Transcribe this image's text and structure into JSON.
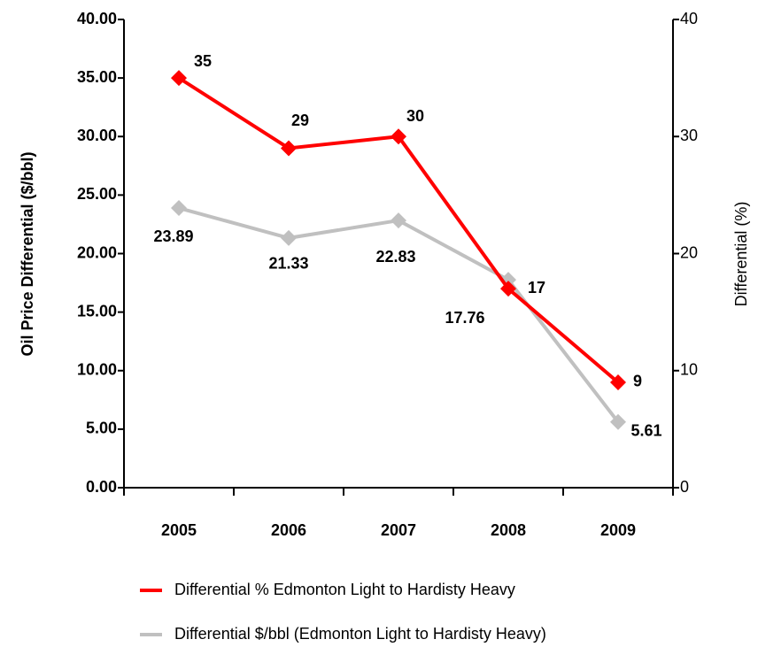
{
  "chart_data": {
    "type": "line",
    "categories": [
      "2005",
      "2006",
      "2007",
      "2008",
      "2009"
    ],
    "y_label": "Oil Price Differential ($/bbl)",
    "y2_label": "Differential (%)",
    "ylim": [
      0,
      40
    ],
    "yticks": [
      {
        "value": 0,
        "label": "0.00"
      },
      {
        "value": 5,
        "label": "5.00"
      },
      {
        "value": 10,
        "label": "10.00"
      },
      {
        "value": 15,
        "label": "15.00"
      },
      {
        "value": 20,
        "label": "20.00"
      },
      {
        "value": 25,
        "label": "25.00"
      },
      {
        "value": 30,
        "label": "30.00"
      },
      {
        "value": 35,
        "label": "35.00"
      },
      {
        "value": 40,
        "label": "40.00"
      }
    ],
    "y2lim": [
      0,
      40
    ],
    "y2ticks": [
      0,
      10,
      20,
      30,
      40
    ],
    "series": [
      {
        "name": "Differential % Edmonton Light to Hardisty Heavy",
        "color": "#ff0000",
        "axis": "y2",
        "values": [
          35,
          29,
          30,
          17,
          9
        ]
      },
      {
        "name": "Differential $/bbl (Edmonton Light to Hardisty Heavy)",
        "color": "#c0c0c0",
        "values": [
          23.89,
          21.33,
          22.83,
          17.76,
          5.61
        ]
      }
    ]
  }
}
